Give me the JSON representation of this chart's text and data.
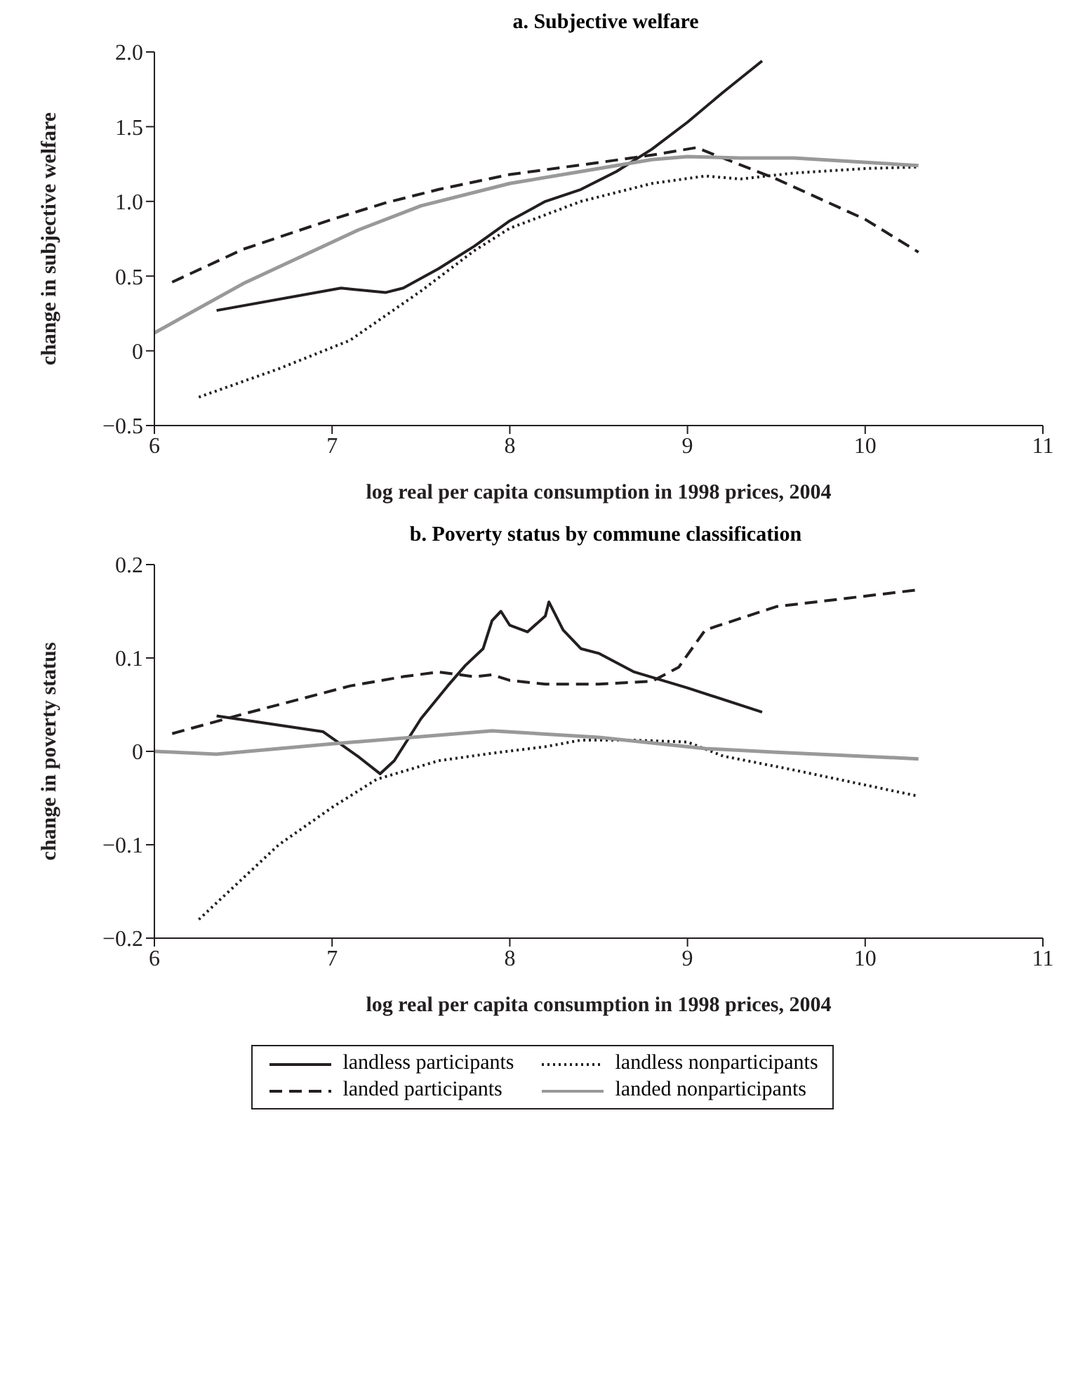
{
  "chart_data": [
    {
      "type": "line",
      "title": "a. Subjective welfare",
      "xlabel": "log real per capita consumption in 1998 prices, 2004",
      "ylabel": "change in subjective welfare",
      "xlim": [
        6,
        11
      ],
      "xticks": [
        6,
        7,
        8,
        9,
        10,
        11
      ],
      "ylim": [
        -0.5,
        2
      ],
      "yticks": [
        {
          "value": -0.5,
          "label": "−0.5"
        },
        0,
        0.5,
        {
          "value": 1,
          "label": "1.0"
        },
        1.5,
        {
          "value": 2,
          "label": "2.0"
        }
      ],
      "legend": false,
      "marker": "none",
      "series": [
        {
          "color": "#231f20",
          "line_style": "solid",
          "x": [
            6.35,
            7.05,
            7.3,
            7.4,
            7.6,
            7.8,
            8.0,
            8.2,
            8.4,
            8.6,
            8.8,
            9.0,
            9.2,
            9.42
          ],
          "values": [
            0.27,
            0.42,
            0.39,
            0.42,
            0.55,
            0.7,
            0.87,
            1.0,
            1.08,
            1.2,
            1.35,
            1.53,
            1.73,
            1.94
          ]
        },
        {
          "color": "#231f20",
          "line_style": "dashed",
          "x": [
            6.1,
            6.5,
            7.0,
            7.3,
            7.6,
            8.0,
            8.5,
            8.8,
            9.05,
            9.5,
            10.0,
            10.3
          ],
          "values": [
            0.46,
            0.68,
            0.88,
            0.99,
            1.08,
            1.18,
            1.26,
            1.31,
            1.36,
            1.15,
            0.88,
            0.66
          ]
        },
        {
          "color": "#231f20",
          "line_style": "dotted",
          "x": [
            6.25,
            6.7,
            7.1,
            7.5,
            7.8,
            8.0,
            8.4,
            8.8,
            9.1,
            9.3,
            9.6,
            10.0,
            10.3
          ],
          "values": [
            -0.31,
            -0.12,
            0.07,
            0.4,
            0.67,
            0.82,
            1.0,
            1.12,
            1.17,
            1.15,
            1.19,
            1.22,
            1.23
          ]
        },
        {
          "color": "#999999",
          "line_style": "solid",
          "x": [
            6.0,
            6.5,
            7.15,
            7.5,
            8.0,
            8.5,
            8.8,
            9.0,
            9.3,
            9.6,
            10.3
          ],
          "values": [
            0.12,
            0.45,
            0.81,
            0.97,
            1.12,
            1.22,
            1.28,
            1.3,
            1.29,
            1.29,
            1.24
          ]
        }
      ]
    },
    {
      "type": "line",
      "title": "b. Poverty status by commune classification",
      "xlabel": "log real per capita consumption in 1998 prices, 2004",
      "ylabel": "change in poverty status",
      "xlim": [
        6,
        11
      ],
      "xticks": [
        6,
        7,
        8,
        9,
        10,
        11
      ],
      "ylim": [
        -0.2,
        0.2
      ],
      "yticks": [
        {
          "value": -0.2,
          "label": "−0.2"
        },
        {
          "value": -0.1,
          "label": "−0.1"
        },
        0,
        0.1,
        0.2
      ],
      "legend": "bottom",
      "marker": "none",
      "series": [
        {
          "name": "landless participants",
          "color": "#231f20",
          "line_style": "solid",
          "x": [
            6.35,
            6.95,
            7.15,
            7.27,
            7.35,
            7.5,
            7.65,
            7.75,
            7.85,
            7.9,
            7.95,
            8.0,
            8.1,
            8.2,
            8.22,
            8.3,
            8.4,
            8.5,
            8.7,
            9.0,
            9.42
          ],
          "values": [
            0.038,
            0.021,
            -0.006,
            -0.024,
            -0.01,
            0.035,
            0.07,
            0.092,
            0.11,
            0.14,
            0.15,
            0.135,
            0.128,
            0.145,
            0.16,
            0.13,
            0.11,
            0.105,
            0.085,
            0.068,
            0.042
          ]
        },
        {
          "name": "landed participants",
          "color": "#231f20",
          "line_style": "dashed",
          "x": [
            6.1,
            6.5,
            6.8,
            7.1,
            7.4,
            7.6,
            7.8,
            7.9,
            8.0,
            8.2,
            8.5,
            8.8,
            8.95,
            9.1,
            9.5,
            10.3
          ],
          "values": [
            0.019,
            0.04,
            0.055,
            0.07,
            0.08,
            0.085,
            0.08,
            0.082,
            0.076,
            0.072,
            0.072,
            0.075,
            0.09,
            0.13,
            0.155,
            0.173
          ]
        },
        {
          "name": "landless nonparticipants",
          "color": "#231f20",
          "line_style": "dotted",
          "x": [
            6.25,
            6.7,
            7.0,
            7.25,
            7.6,
            7.9,
            8.2,
            8.4,
            8.7,
            9.0,
            9.2,
            9.6,
            10.3
          ],
          "values": [
            -0.18,
            -0.1,
            -0.06,
            -0.03,
            -0.01,
            -0.002,
            0.005,
            0.012,
            0.012,
            0.01,
            -0.005,
            -0.02,
            -0.048
          ]
        },
        {
          "name": "landed nonparticipants",
          "color": "#999999",
          "line_style": "solid",
          "x": [
            6.0,
            6.35,
            7.0,
            7.9,
            8.5,
            9.1,
            9.5,
            10.3
          ],
          "values": [
            0,
            -0.003,
            0.008,
            0.022,
            0.015,
            0.003,
            -0.001,
            -0.008
          ]
        }
      ]
    }
  ]
}
